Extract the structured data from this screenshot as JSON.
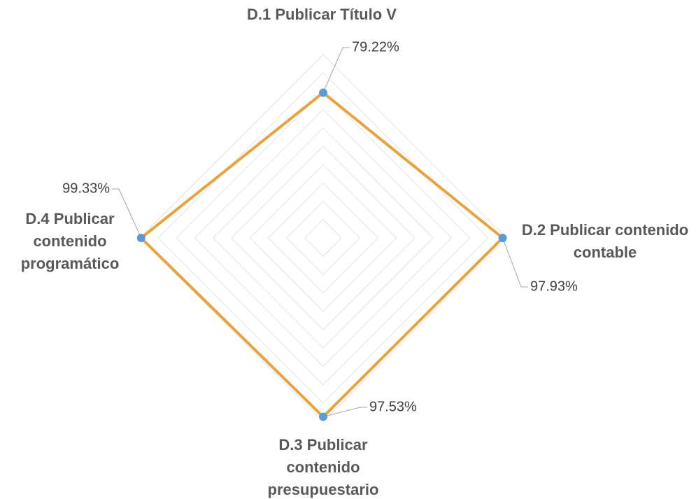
{
  "chart_data": {
    "type": "radar",
    "categories": [
      "D.1 Publicar Título V",
      "D.2 Publicar contenido contable",
      "D.3 Publicar contenido presupuestario",
      "D.4 Publicar contenido programático"
    ],
    "values": [
      79.22,
      97.93,
      97.53,
      99.33
    ],
    "value_labels": [
      "79.22%",
      "97.93%",
      "97.53%",
      "99.33%"
    ],
    "color": "#E8A33C",
    "marker_color": "#5B9BD5",
    "rlim": [
      0,
      100
    ],
    "rticks": [
      0,
      10,
      20,
      30,
      40,
      50,
      60,
      70,
      80,
      90,
      100
    ],
    "grid": true
  }
}
